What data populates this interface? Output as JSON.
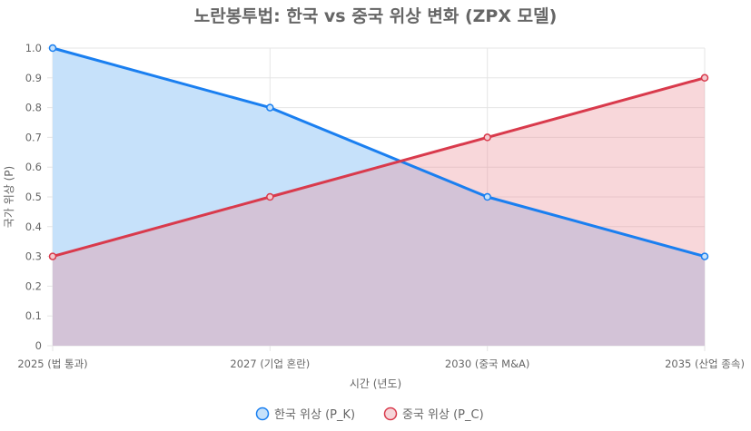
{
  "chart_data": {
    "type": "area",
    "title": "노란봉투법: 한국 vs 중국 위상 변화 (ZPX 모델)",
    "xlabel": "시간 (년도)",
    "ylabel": "국가 위상 (P)",
    "categories": [
      "2025 (법 통과)",
      "2027 (기업 혼란)",
      "2030 (중국 M&A)",
      "2035 (산업 종속)"
    ],
    "ylim": [
      0,
      1
    ],
    "yticks": [
      "0",
      "0.1",
      "0.2",
      "0.3",
      "0.4",
      "0.5",
      "0.6",
      "0.7",
      "0.8",
      "0.9",
      "1.0"
    ],
    "ytick_values": [
      0,
      0.1,
      0.2,
      0.3,
      0.4,
      0.5,
      0.6,
      0.7,
      0.8,
      0.9,
      1.0
    ],
    "grid": true,
    "legend_position": "bottom",
    "series": [
      {
        "name": "한국 위상 (P_K)",
        "values": [
          1.0,
          0.8,
          0.5,
          0.3
        ],
        "color": "#1a7ff0",
        "fill": "#c6e1fa"
      },
      {
        "name": "중국 위상 (P_C)",
        "values": [
          0.3,
          0.5,
          0.7,
          0.9
        ],
        "color": "#d93a4c",
        "fill": "rgba(235,140,150,0.35)"
      }
    ]
  }
}
